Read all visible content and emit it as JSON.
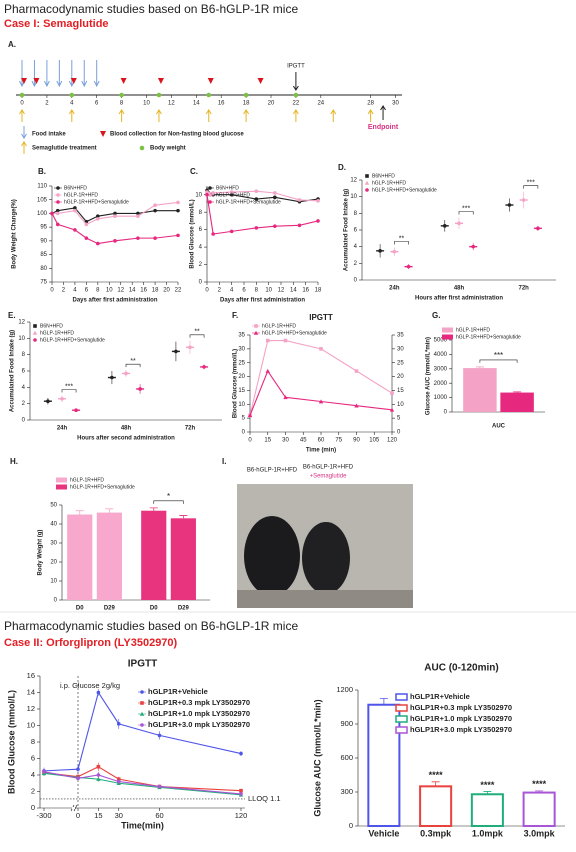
{
  "header": {
    "title": "Pharmacodynamic studies based on B6-hGLP-1R mice",
    "subtitle": "Case I: Semaglutide"
  },
  "timeline": {
    "panel": "A.",
    "ticks": [
      0,
      2,
      4,
      6,
      8,
      10,
      12,
      14,
      16,
      18,
      20,
      22,
      24,
      28,
      30
    ],
    "food_intake": [
      0,
      1,
      2,
      3,
      4,
      5,
      6
    ],
    "blood_collection": [
      0,
      1,
      4,
      8,
      11,
      15,
      19
    ],
    "semaglutide": [
      0,
      4,
      8,
      11,
      15,
      18,
      22,
      25,
      28
    ],
    "body_weight": [
      0,
      4,
      8,
      11,
      15,
      18,
      22
    ],
    "ipgtt": {
      "day": 22,
      "label": "IPGTT"
    },
    "endpoint": {
      "day": 29,
      "label": "Endpoint"
    },
    "legend": [
      "Food intake",
      "Blood collection for Non-fasting blood glucose",
      "Semaglutide treatment",
      "Body weight"
    ]
  },
  "photo": {
    "panel": "I.",
    "labels": [
      "B6-hGLP-1R+HFD",
      "B6-hGLP-1R+HFD",
      "+Semaglutide"
    ]
  },
  "case2": {
    "title": "Pharmacodynamic studies based on B6-hGLP-1R mice",
    "subtitle": "Case II: Orforglipron (LY3502970)"
  },
  "chart_data": [
    {
      "type": "line",
      "panel": "B.",
      "ylabel": "Body Weight Change(%)",
      "xlabel": "Days after first administration",
      "x": [
        0,
        1,
        4,
        6,
        8,
        11,
        15,
        18,
        22
      ],
      "xlim": [
        0,
        22
      ],
      "xticks": [
        0,
        2,
        4,
        6,
        8,
        10,
        12,
        14,
        16,
        18,
        20,
        22
      ],
      "ylim": [
        75,
        110
      ],
      "yticks": [
        75,
        80,
        85,
        90,
        95,
        100,
        105,
        110
      ],
      "series": [
        {
          "name": "B6N+HFD",
          "color": "#222222",
          "marker": "circle",
          "values": [
            100,
            101,
            102,
            97,
            99,
            100,
            100,
            101,
            101
          ]
        },
        {
          "name": "hGLP-1R+HFD",
          "color": "#f4a3c6",
          "marker": "circle",
          "values": [
            100,
            100,
            101,
            96,
            98,
            99,
            99,
            103,
            104
          ]
        },
        {
          "name": "hGLP-1R+HFD+Semaglutide",
          "color": "#e6287f",
          "marker": "circle",
          "values": [
            100,
            96,
            94,
            91,
            89,
            90,
            91,
            91,
            92
          ]
        }
      ]
    },
    {
      "type": "line",
      "panel": "C.",
      "ylabel": "Blood Glucose (mmol/L)",
      "xlabel": "Days after first administration",
      "x": [
        0,
        1,
        4,
        8,
        11,
        15,
        18
      ],
      "xlim": [
        0,
        18
      ],
      "xticks": [
        0,
        2,
        4,
        6,
        8,
        10,
        12,
        14,
        16,
        18
      ],
      "ylim": [
        0,
        11
      ],
      "yticks": [
        0,
        2,
        4,
        6,
        8,
        10
      ],
      "series": [
        {
          "name": "B6N+HFD",
          "color": "#222222",
          "marker": "circle",
          "values": [
            10.5,
            10,
            10,
            9.5,
            9.7,
            9.2,
            9.5
          ]
        },
        {
          "name": "hGLP-1R+HFD",
          "color": "#f4a3c6",
          "marker": "circle",
          "values": [
            10.3,
            10.2,
            10.3,
            10.4,
            10.2,
            9.4,
            9.3
          ]
        },
        {
          "name": "hGLP-1R+HFD+Semaglutide",
          "color": "#e6287f",
          "marker": "circle",
          "values": [
            10,
            5.5,
            5.8,
            6.2,
            6.4,
            6.5,
            7
          ]
        }
      ]
    },
    {
      "type": "dot",
      "panel": "D.",
      "ylabel": "Accumulated Food Intake (g)",
      "xlabel": "Hours after first administration",
      "categories": [
        "24h",
        "48h",
        "72h"
      ],
      "ylim": [
        0,
        12
      ],
      "yticks": [
        0,
        2,
        4,
        6,
        8,
        10,
        12
      ],
      "annotations": [
        "**",
        "***",
        "***"
      ],
      "series": [
        {
          "name": "B6N+HFD",
          "color": "#222222",
          "values": [
            3.5,
            6.5,
            9
          ],
          "errors": [
            0.8,
            0.7,
            0.8
          ]
        },
        {
          "name": "hGLP-1R+HFD",
          "color": "#f4a3c6",
          "values": [
            3.4,
            6.8,
            9.6
          ],
          "errors": [
            0.5,
            0.7,
            1
          ]
        },
        {
          "name": "hGLP-1R+HFD+Semaglutide",
          "color": "#e6287f",
          "values": [
            1.6,
            4,
            6.2
          ],
          "errors": [
            0.3,
            0.4,
            0.3
          ]
        }
      ]
    },
    {
      "type": "dot",
      "panel": "E.",
      "ylabel": "Accumulated Food Intake (g)",
      "xlabel": "Hours after second administration",
      "categories": [
        "24h",
        "48h",
        "72h"
      ],
      "ylim": [
        0,
        12
      ],
      "yticks": [
        0,
        2,
        4,
        6,
        8,
        10,
        12
      ],
      "annotations": [
        "***",
        "**",
        "**"
      ],
      "series": [
        {
          "name": "B6N+HFD",
          "color": "#222222",
          "values": [
            2.3,
            5.2,
            8.4
          ],
          "errors": [
            0.4,
            0.8,
            1.2
          ]
        },
        {
          "name": "hGLP-1R+HFD",
          "color": "#f4a3c6",
          "values": [
            2.6,
            5.7,
            8.9
          ],
          "errors": [
            0.4,
            0.4,
            0.8
          ]
        },
        {
          "name": "hGLP-1R+HFD+Semaglutide",
          "color": "#e6287f",
          "values": [
            1.2,
            3.8,
            6.5
          ],
          "errors": [
            0.2,
            0.6,
            0.3
          ]
        }
      ]
    },
    {
      "type": "line",
      "panel": "F.",
      "title": "IPGTT",
      "ylabel": "Blood Glucose (mmol/L)",
      "xlabel": "Time (min)",
      "x": [
        0,
        15,
        30,
        60,
        90,
        120
      ],
      "xlim": [
        0,
        120
      ],
      "xticks": [
        0,
        15,
        30,
        45,
        60,
        75,
        90,
        105,
        120
      ],
      "ylim": [
        0,
        35
      ],
      "yticks": [
        0,
        5,
        10,
        15,
        20,
        25,
        30,
        35
      ],
      "y2lim": [
        0,
        35
      ],
      "y2ticks": [
        0,
        5,
        10,
        15,
        20,
        25,
        30,
        35
      ],
      "series": [
        {
          "name": "hGLP-1R+HFD",
          "color": "#f4a3c6",
          "marker": "square",
          "values": [
            6,
            33,
            33,
            30,
            22,
            14
          ]
        },
        {
          "name": "hGLP-1R+HFD+Semaglutide",
          "color": "#e6287f",
          "marker": "triangle",
          "axis": "y2",
          "values": [
            6,
            22,
            12.5,
            11,
            9.5,
            8
          ]
        }
      ]
    },
    {
      "type": "bar",
      "panel": "G.",
      "ylabel": "Glucose AUC (mmol/L*min)",
      "xlabel": "AUC",
      "values": [
        3050,
        1350
      ],
      "errors": [
        80,
        50
      ],
      "colors": [
        "#f4a3c6",
        "#e6287f"
      ],
      "ylim": [
        0,
        5000
      ],
      "yticks": [
        0,
        1000,
        2000,
        3000,
        4000,
        5000
      ],
      "annotation": "***",
      "legend": [
        {
          "name": "hGLP-1R+HFD",
          "color": "#f4a3c6"
        },
        {
          "name": "hGLP-1R+HFD+Semaglutide",
          "color": "#e6287f"
        }
      ]
    },
    {
      "type": "bar",
      "panel": "H.",
      "ylabel": "Body Weight (g)",
      "categories": [
        "D0",
        "D29",
        "D0",
        "D29"
      ],
      "values": [
        45,
        46,
        47,
        43
      ],
      "errors": [
        2,
        2,
        1.5,
        1.5
      ],
      "colors": [
        "#f7a8cc",
        "#f7a8cc",
        "#e8337f",
        "#e8337f"
      ],
      "ylim": [
        0,
        50
      ],
      "yticks": [
        0,
        10,
        20,
        30,
        40,
        50
      ],
      "annotation": "*",
      "legend": [
        {
          "name": "hGLP-1R+HFD",
          "color": "#f7a8cc"
        },
        {
          "name": "hGLP-1R+HFD+Semaglutide",
          "color": "#e8337f"
        }
      ]
    },
    {
      "type": "line",
      "title": "IPGTT",
      "ylabel": "Blood Glucose (mmol/L)",
      "xlabel": "Time(min)",
      "x": [
        -300,
        0,
        15,
        30,
        60,
        120
      ],
      "xlim": [
        -300,
        120
      ],
      "xticks": [
        -300,
        0,
        15,
        30,
        60,
        120
      ],
      "ylim": [
        0,
        16
      ],
      "yticks": [
        0,
        2,
        4,
        6,
        8,
        10,
        12,
        14,
        16
      ],
      "note": "i.p. Glucose 2g/kg",
      "lloq": {
        "value": 1.1,
        "label": "LLOQ 1.1"
      },
      "series": [
        {
          "name": "hGLP1R+Vehicle",
          "color": "#4f55e8",
          "marker": "circle",
          "values": [
            4.5,
            4.7,
            14.0,
            10.2,
            8.8,
            6.6
          ],
          "errors": [
            0.4,
            0.5,
            0.4,
            0.6,
            0.5,
            0.3
          ]
        },
        {
          "name": "hGLP1R+0.3 mpk LY3502970",
          "color": "#e8423f",
          "marker": "square",
          "values": [
            4.3,
            3.8,
            5.0,
            3.5,
            2.6,
            2.1
          ],
          "errors": [
            0.4,
            0.3,
            0.5,
            0.3,
            0.2,
            0.2
          ]
        },
        {
          "name": "hGLP1R+1.0 mpk LY3502970",
          "color": "#1fae7a",
          "marker": "triangle",
          "values": [
            4.2,
            3.7,
            3.5,
            3.0,
            2.5,
            1.6
          ],
          "errors": [
            0.3,
            0.3,
            0.3,
            0.2,
            0.2,
            0.2
          ]
        },
        {
          "name": "hGLP1R+3.0 mpk LY3502970",
          "color": "#a855d6",
          "marker": "circle",
          "values": [
            4.4,
            3.6,
            4.0,
            3.2,
            2.6,
            1.7
          ],
          "errors": [
            0.3,
            0.3,
            0.4,
            0.3,
            0.2,
            0.2
          ]
        }
      ]
    },
    {
      "type": "bar",
      "title": "AUC (0-120min)",
      "ylabel": "Glucose AUC (mmol/L*min)",
      "categories": [
        "Vehicle",
        "0.3mpk",
        "1.0mpk",
        "3.0mpk"
      ],
      "values": [
        1070,
        350,
        280,
        295
      ],
      "errors": [
        55,
        40,
        25,
        15
      ],
      "colors": [
        "#4f55e8",
        "#e8423f",
        "#1fae7a",
        "#a855d6"
      ],
      "ylim": [
        0,
        1200
      ],
      "yticks": [
        0,
        300,
        600,
        900,
        1200
      ],
      "annotations": [
        null,
        "****",
        "****",
        "****"
      ],
      "legend": [
        {
          "name": "hGLP1R+Vehicle",
          "color": "#4f55e8"
        },
        {
          "name": "hGLP1R+0.3 mpk LY3502970",
          "color": "#e8423f"
        },
        {
          "name": "hGLP1R+1.0 mpk LY3502970",
          "color": "#1fae7a"
        },
        {
          "name": "hGLP1R+3.0 mpk LY3502970",
          "color": "#a855d6"
        }
      ]
    }
  ]
}
